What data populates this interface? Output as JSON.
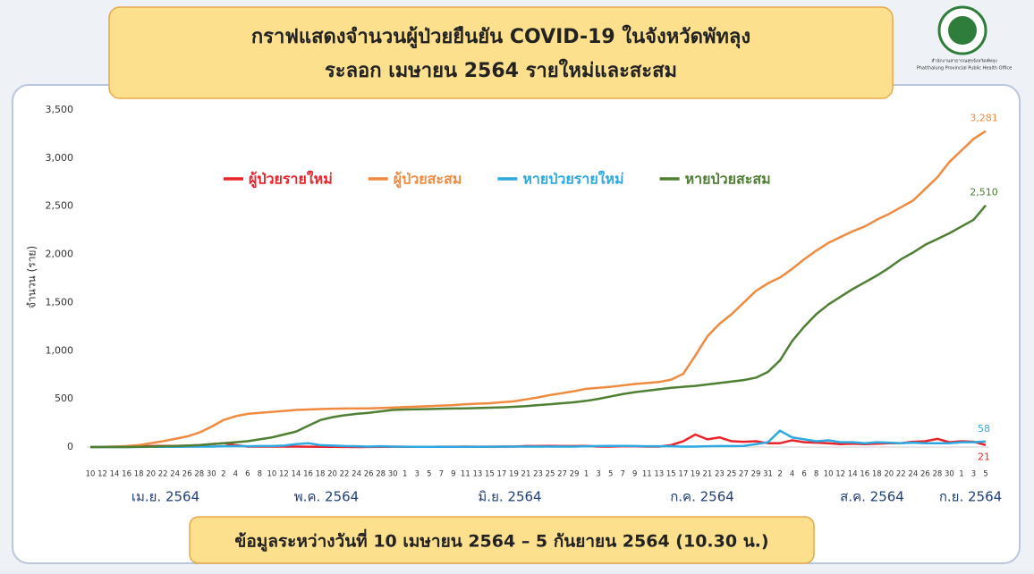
{
  "chart_data": {
    "type": "line",
    "title": [
      "กราฟแสดงจำนวนผู้ป่วยยืนยัน COVID-19 ในจังหวัดพัทลุง",
      "ระลอก เมษายน 2564 รายใหม่และสะสม"
    ],
    "y_label": "จำนวน (ราย)",
    "categories": [
      "10",
      "12",
      "14",
      "16",
      "18",
      "20",
      "22",
      "24",
      "26",
      "28",
      "30",
      "2",
      "4",
      "6",
      "8",
      "10",
      "12",
      "14",
      "16",
      "18",
      "20",
      "22",
      "24",
      "26",
      "28",
      "30",
      "1",
      "3",
      "5",
      "7",
      "9",
      "11",
      "13",
      "15",
      "17",
      "19",
      "21",
      "23",
      "25",
      "27",
      "29",
      "1",
      "3",
      "5",
      "7",
      "9",
      "11",
      "13",
      "15",
      "17",
      "19",
      "21",
      "23",
      "25",
      "27",
      "29",
      "31",
      "2",
      "4",
      "6",
      "8",
      "10",
      "12",
      "14",
      "16",
      "18",
      "20",
      "22",
      "24",
      "26",
      "28",
      "30",
      "1",
      "3",
      "5"
    ],
    "months": [
      "เม.ย. 2564",
      "พ.ค. 2564",
      "มิ.ย. 2564",
      "ก.ค. 2564",
      "ส.ค. 2564",
      "ก.ย. 2564"
    ],
    "ylim": [
      0,
      3500
    ],
    "yticks": [
      0,
      500,
      {
        "value": 1000,
        "label": "1,000"
      },
      {
        "value": 1500,
        "label": "1,500"
      },
      {
        "value": 2000,
        "label": "2,000"
      },
      {
        "value": 2500,
        "label": "2,500"
      },
      {
        "value": 3000,
        "label": "3,000"
      },
      {
        "value": 3500,
        "label": "3,500"
      }
    ],
    "series": [
      {
        "name": "ผู้ป่วยรายใหม่",
        "color": "#e8242a",
        "values": [
          0,
          2,
          3,
          3,
          8,
          10,
          12,
          12,
          15,
          20,
          30,
          40,
          20,
          5,
          5,
          5,
          5,
          5,
          3,
          2,
          2,
          1,
          0,
          1,
          2,
          3,
          2,
          2,
          2,
          3,
          3,
          5,
          3,
          3,
          5,
          5,
          10,
          10,
          12,
          10,
          10,
          12,
          5,
          5,
          8,
          8,
          5,
          5,
          20,
          60,
          130,
          80,
          100,
          60,
          55,
          60,
          40,
          40,
          70,
          50,
          45,
          40,
          30,
          35,
          30,
          35,
          40,
          40,
          55,
          60,
          85,
          50,
          60,
          55,
          21
        ],
        "value_labels": [
          null,
          null,
          null,
          null,
          null,
          null,
          null,
          null,
          null,
          null,
          null,
          null,
          null,
          null,
          null,
          null,
          null,
          null,
          null,
          null,
          null,
          null,
          null,
          null,
          null,
          null,
          null,
          null,
          null,
          null,
          null,
          null,
          null,
          null,
          null,
          null,
          null,
          null,
          null,
          null,
          null,
          null,
          null,
          null,
          null,
          null,
          null,
          null,
          null,
          null,
          null,
          null,
          null,
          null,
          null,
          null,
          null,
          null,
          null,
          null,
          null,
          null,
          null,
          null,
          null,
          null,
          null,
          null,
          null,
          null,
          null,
          null,
          null,
          null,
          "21"
        ]
      },
      {
        "name": "ผู้ป่วยสะสม",
        "color": "#ef8a3e",
        "values": [
          0,
          2,
          5,
          10,
          20,
          40,
          60,
          85,
          110,
          150,
          210,
          280,
          320,
          345,
          355,
          365,
          375,
          385,
          390,
          395,
          398,
          400,
          400,
          402,
          405,
          410,
          415,
          420,
          425,
          430,
          435,
          445,
          450,
          455,
          465,
          475,
          495,
          515,
          540,
          560,
          580,
          605,
          615,
          625,
          640,
          655,
          665,
          675,
          700,
          760,
          950,
          1150,
          1280,
          1380,
          1500,
          1620,
          1700,
          1760,
          1850,
          1950,
          2040,
          2120,
          2180,
          2240,
          2290,
          2360,
          2420,
          2490,
          2560,
          2680,
          2800,
          2960,
          3080,
          3200,
          3281
        ],
        "value_labels": [
          null,
          null,
          null,
          null,
          null,
          null,
          null,
          null,
          null,
          null,
          null,
          null,
          null,
          null,
          null,
          null,
          null,
          null,
          null,
          null,
          null,
          null,
          null,
          null,
          null,
          null,
          null,
          null,
          null,
          null,
          null,
          null,
          null,
          null,
          null,
          null,
          null,
          null,
          null,
          null,
          null,
          null,
          null,
          null,
          null,
          null,
          null,
          null,
          null,
          null,
          null,
          null,
          null,
          null,
          null,
          null,
          null,
          null,
          null,
          null,
          null,
          null,
          null,
          null,
          null,
          null,
          null,
          null,
          null,
          null,
          null,
          null,
          null,
          null,
          "3,281"
        ]
      },
      {
        "name": "หายป่วยรายใหม่",
        "color": "#2ea8e0",
        "values": [
          0,
          0,
          0,
          0,
          1,
          2,
          2,
          2,
          3,
          5,
          5,
          8,
          10,
          8,
          10,
          10,
          15,
          30,
          40,
          20,
          15,
          10,
          8,
          5,
          8,
          5,
          3,
          2,
          2,
          2,
          2,
          2,
          2,
          3,
          3,
          5,
          5,
          5,
          5,
          5,
          5,
          8,
          10,
          12,
          12,
          10,
          8,
          8,
          8,
          5,
          5,
          8,
          10,
          10,
          12,
          30,
          50,
          170,
          100,
          80,
          60,
          70,
          50,
          50,
          40,
          50,
          45,
          40,
          45,
          40,
          40,
          40,
          50,
          50,
          58
        ],
        "value_labels": [
          null,
          null,
          null,
          null,
          null,
          null,
          null,
          null,
          null,
          null,
          null,
          null,
          null,
          null,
          null,
          null,
          null,
          null,
          null,
          null,
          null,
          null,
          null,
          null,
          null,
          null,
          null,
          null,
          null,
          null,
          null,
          null,
          null,
          null,
          null,
          null,
          null,
          null,
          null,
          null,
          null,
          null,
          null,
          null,
          null,
          null,
          null,
          null,
          null,
          null,
          null,
          null,
          null,
          null,
          null,
          null,
          null,
          null,
          null,
          null,
          null,
          null,
          null,
          null,
          null,
          null,
          null,
          null,
          null,
          null,
          null,
          null,
          null,
          null,
          "58"
        ]
      },
      {
        "name": "หายป่วยสะสม",
        "color": "#4e7f32",
        "values": [
          0,
          0,
          0,
          0,
          2,
          5,
          8,
          10,
          15,
          20,
          30,
          40,
          50,
          60,
          80,
          100,
          130,
          160,
          220,
          280,
          310,
          330,
          345,
          355,
          370,
          385,
          390,
          392,
          395,
          398,
          400,
          402,
          405,
          408,
          412,
          418,
          425,
          435,
          445,
          455,
          465,
          480,
          500,
          525,
          550,
          570,
          585,
          600,
          615,
          625,
          635,
          650,
          665,
          680,
          695,
          720,
          780,
          900,
          1100,
          1250,
          1380,
          1480,
          1560,
          1640,
          1710,
          1780,
          1860,
          1950,
          2020,
          2100,
          2160,
          2220,
          2290,
          2360,
          2510
        ],
        "value_labels": [
          null,
          null,
          null,
          null,
          null,
          null,
          null,
          null,
          null,
          null,
          null,
          null,
          null,
          null,
          null,
          null,
          null,
          null,
          null,
          null,
          null,
          null,
          null,
          null,
          null,
          null,
          null,
          null,
          null,
          null,
          null,
          null,
          null,
          null,
          null,
          null,
          null,
          null,
          null,
          null,
          null,
          null,
          null,
          null,
          null,
          null,
          null,
          null,
          null,
          null,
          null,
          null,
          null,
          null,
          null,
          null,
          null,
          null,
          null,
          null,
          null,
          null,
          null,
          null,
          null,
          null,
          null,
          null,
          null,
          null,
          null,
          null,
          null,
          null,
          "2,510"
        ]
      }
    ]
  },
  "footer": "ข้อมูลระหว่างวันที่ 10 เมษายน 2564 – 5 กันยายน 2564 (10.30 น.)",
  "logo": {
    "thai": "สำนักงานสาธารณสุขจังหวัดพัทลุง",
    "english": "Phatthalung Provincial Public Health Office"
  }
}
